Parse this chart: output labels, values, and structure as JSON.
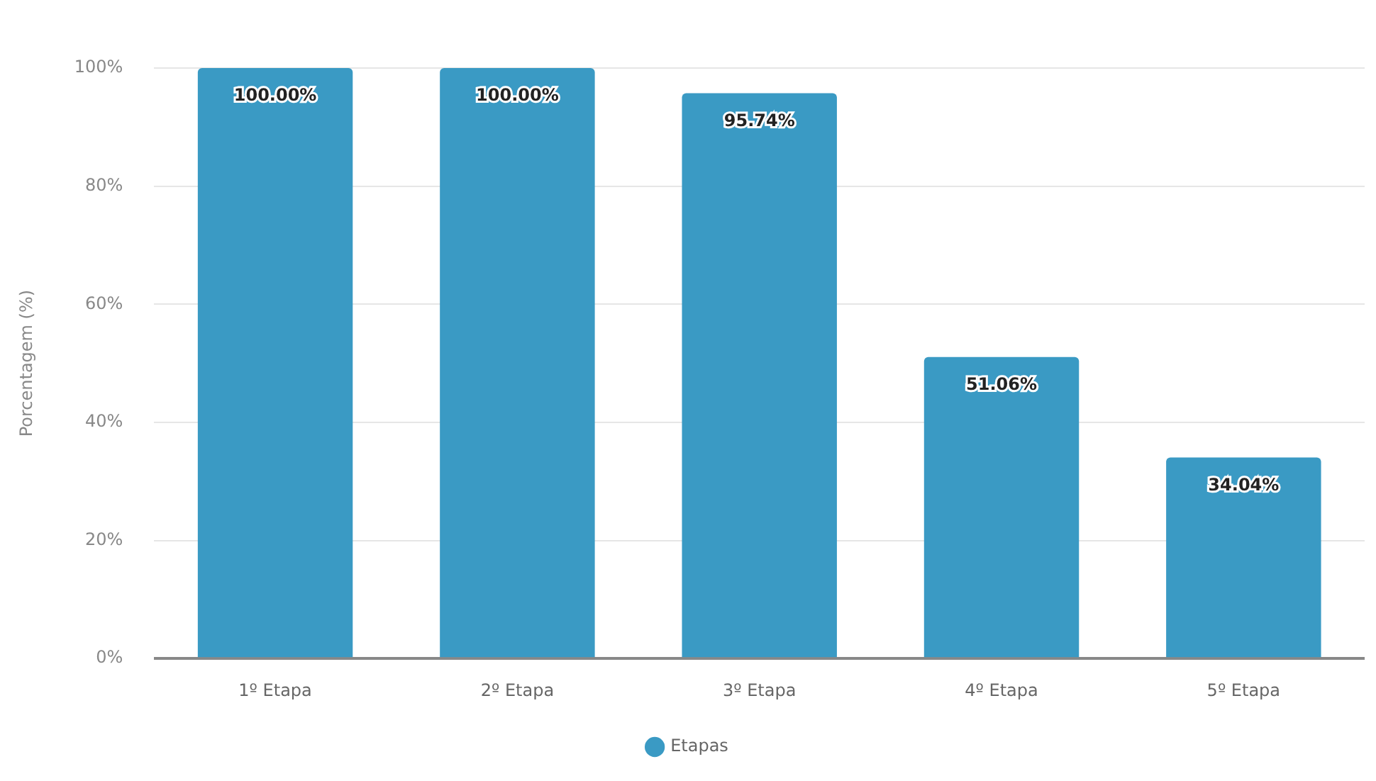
{
  "chart_data": {
    "type": "bar",
    "ylabel": "Porcentagem (%)",
    "categories": [
      "1º Etapa",
      "2º Etapa",
      "3º Etapa",
      "4º Etapa",
      "5º Etapa"
    ],
    "series": [
      {
        "name": "Etapas",
        "color": "#3a9ac4",
        "values": [
          100,
          100,
          95.74,
          51.06,
          34.04
        ],
        "value_labels": [
          "100.00%",
          "100.00%",
          "95.74%",
          "51.06%",
          "34.04%"
        ]
      }
    ],
    "ylim": [
      0,
      100
    ],
    "yticks": [
      {
        "value": 0,
        "label": "0%"
      },
      {
        "value": 20,
        "label": "20%"
      },
      {
        "value": 40,
        "label": "40%"
      },
      {
        "value": 60,
        "label": "60%"
      },
      {
        "value": 80,
        "label": "80%"
      },
      {
        "value": 100,
        "label": "100%"
      }
    ],
    "grid": "y",
    "legend": "bottom"
  }
}
